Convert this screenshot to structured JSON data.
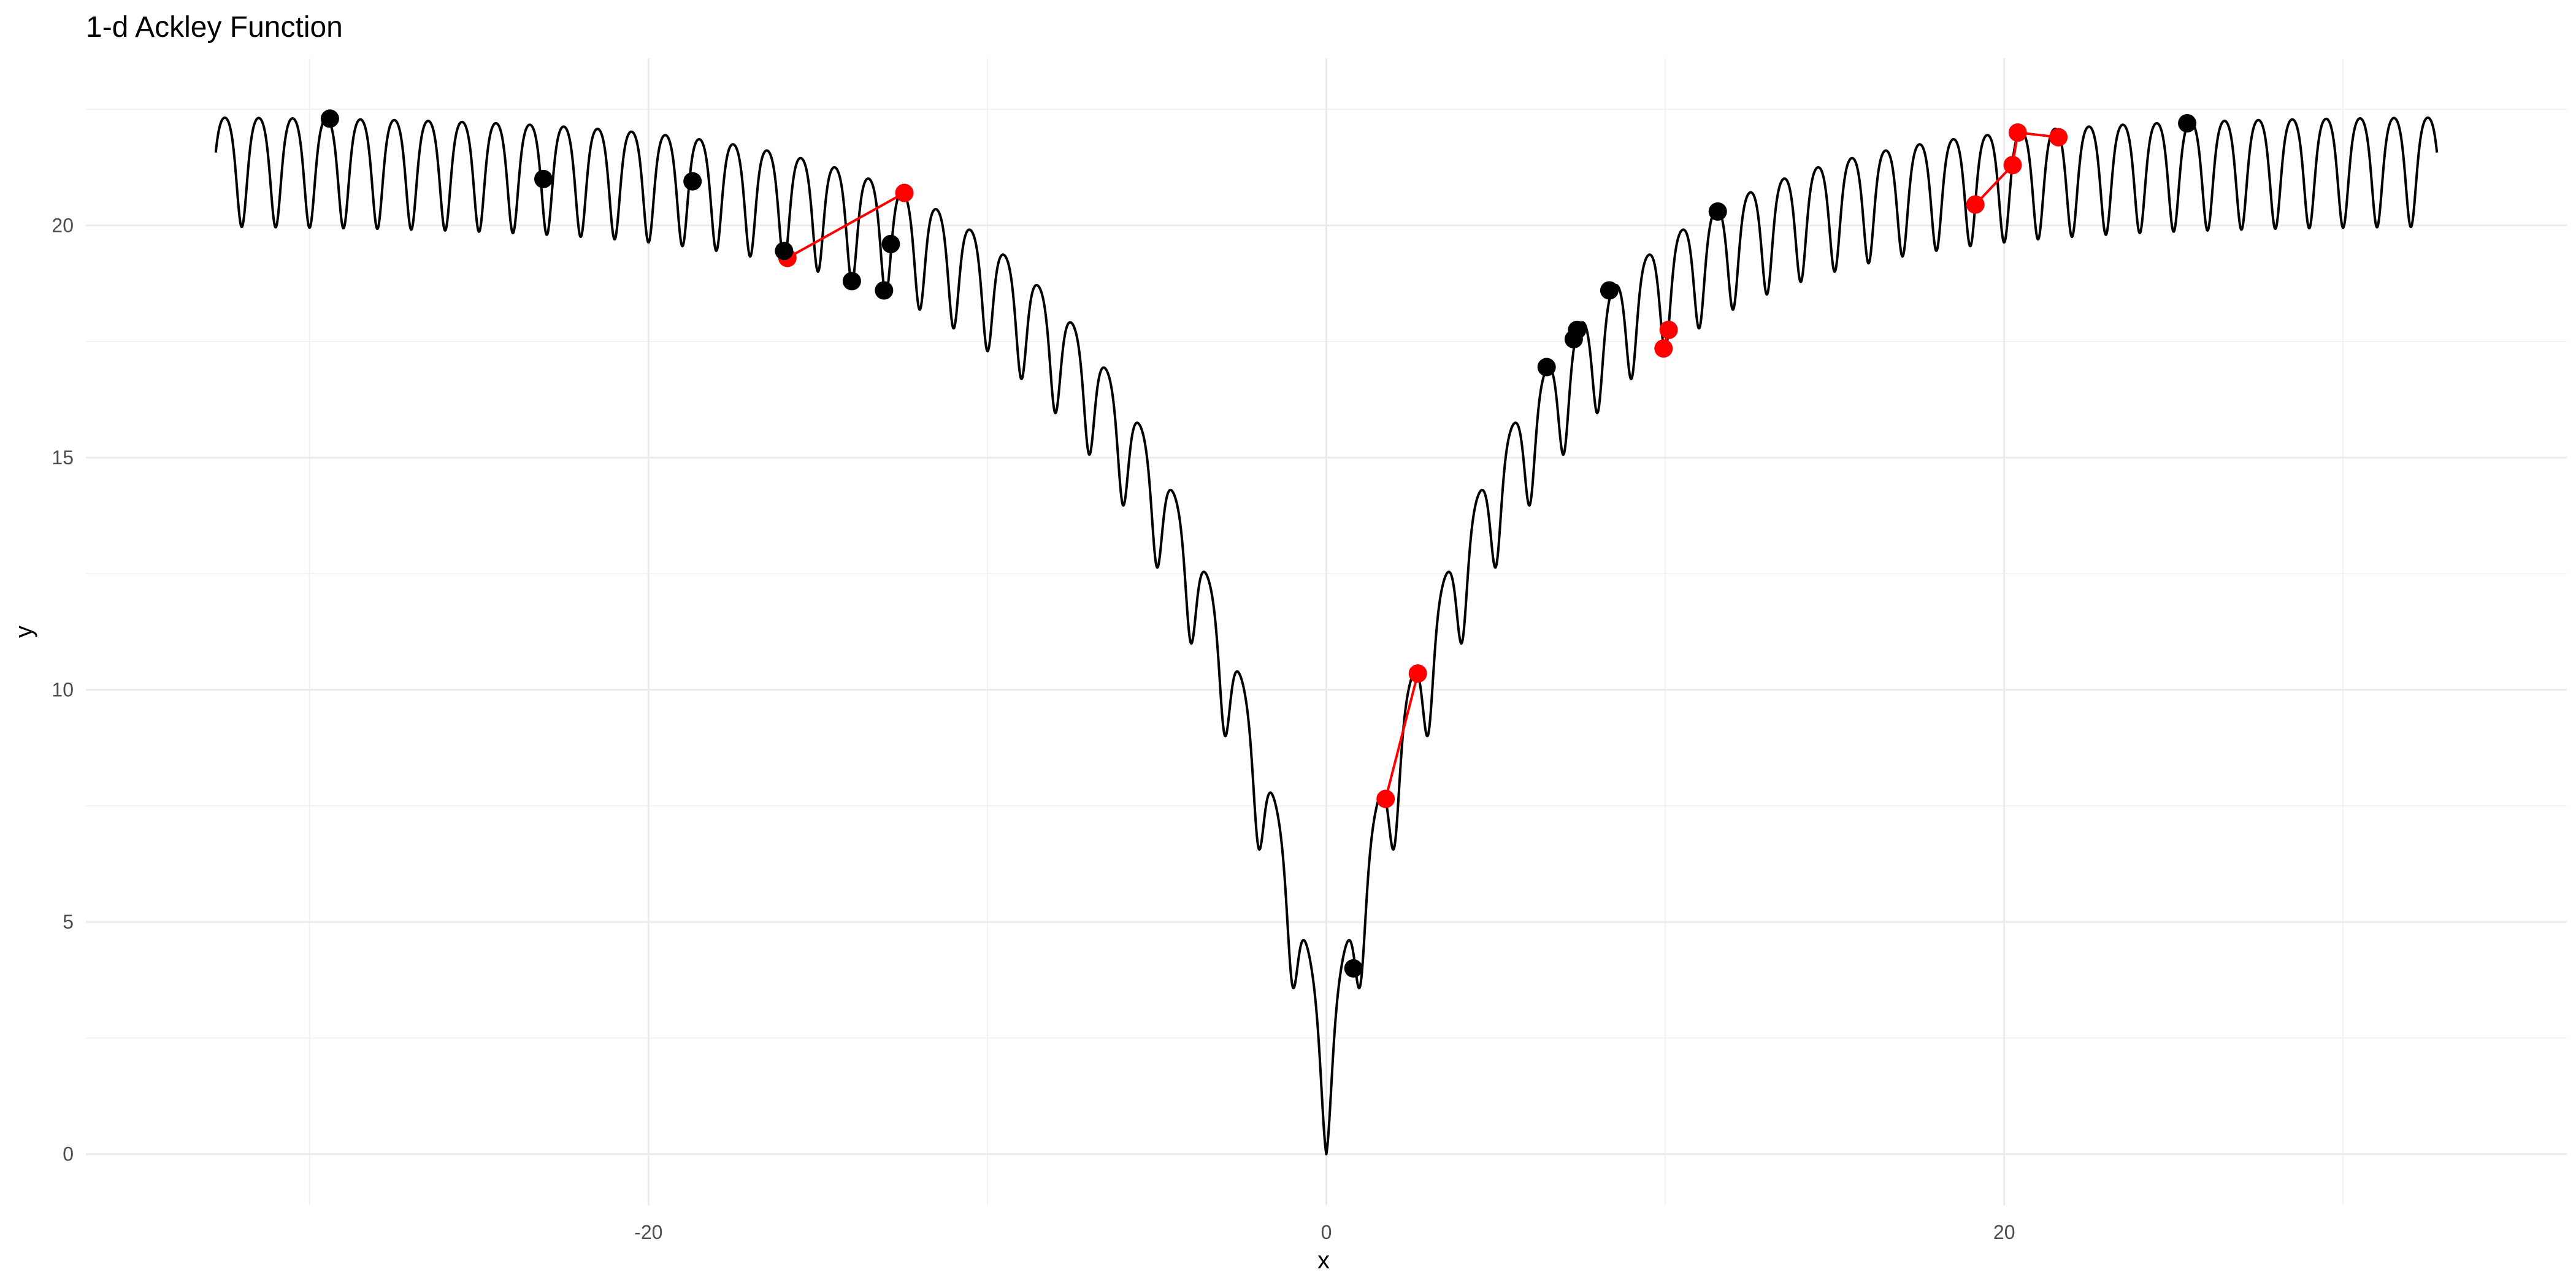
{
  "chart_data": {
    "type": "line",
    "title": "1-d Ackley Function",
    "xlabel": "x",
    "ylabel": "y",
    "xlim": [
      -36.6,
      36.6
    ],
    "ylim": [
      -1.1,
      23.6
    ],
    "x_ticks": [
      -20,
      0,
      20
    ],
    "y_ticks": [
      0,
      5,
      10,
      15,
      20
    ],
    "grid": true,
    "curve": {
      "function": "ackley-1d",
      "x_range": [
        -32.768,
        32.768
      ],
      "color": "#000000"
    },
    "black_points": {
      "color": "#000000",
      "points": [
        [
          -29.4,
          22.3
        ],
        [
          -23.1,
          21.0
        ],
        [
          -18.7,
          20.95
        ],
        [
          -16.0,
          19.45
        ],
        [
          -14.0,
          18.8
        ],
        [
          -13.05,
          18.6
        ],
        [
          -12.85,
          19.6
        ],
        [
          0.8,
          4.0
        ],
        [
          6.5,
          16.95
        ],
        [
          7.3,
          17.55
        ],
        [
          7.4,
          17.75
        ],
        [
          8.35,
          18.6
        ],
        [
          11.55,
          20.3
        ],
        [
          25.4,
          22.2
        ]
      ]
    },
    "red_paths": {
      "color": "#ff0000",
      "paths": [
        [
          [
            -15.9,
            19.3
          ],
          [
            -12.45,
            20.7
          ]
        ],
        [
          [
            1.75,
            7.65
          ],
          [
            2.7,
            10.35
          ]
        ],
        [
          [
            9.95,
            17.35
          ],
          [
            10.1,
            17.75
          ]
        ],
        [
          [
            19.15,
            20.45
          ],
          [
            20.25,
            21.3
          ],
          [
            20.4,
            22.0
          ],
          [
            21.6,
            21.9
          ]
        ]
      ]
    }
  }
}
